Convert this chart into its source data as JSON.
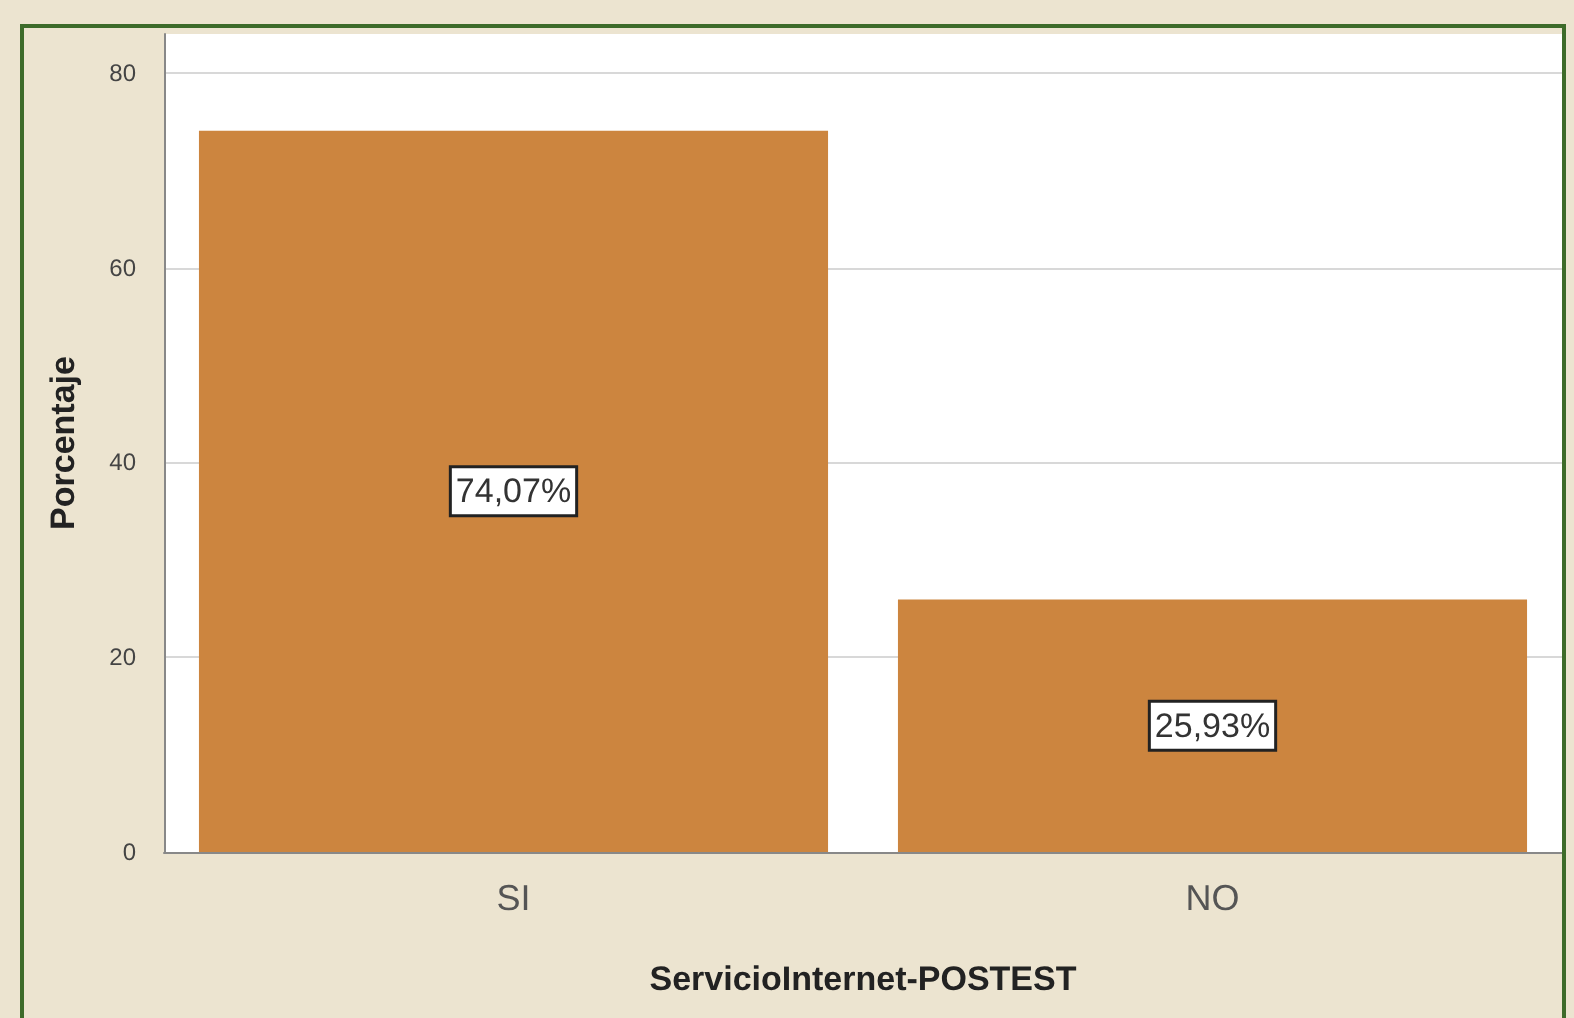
{
  "chart_data": {
    "type": "bar",
    "xlabel": "ServicioInternet-POSTEST",
    "ylabel": "Porcentaje",
    "categories": [
      "SI",
      "NO"
    ],
    "values": [
      74.07,
      25.93
    ],
    "value_labels": [
      "74,07%",
      "25,93%"
    ],
    "color": "#cc853f",
    "ylim": [
      0,
      84
    ],
    "yticks": [
      0,
      20,
      40,
      60,
      80
    ],
    "grid": "y"
  }
}
